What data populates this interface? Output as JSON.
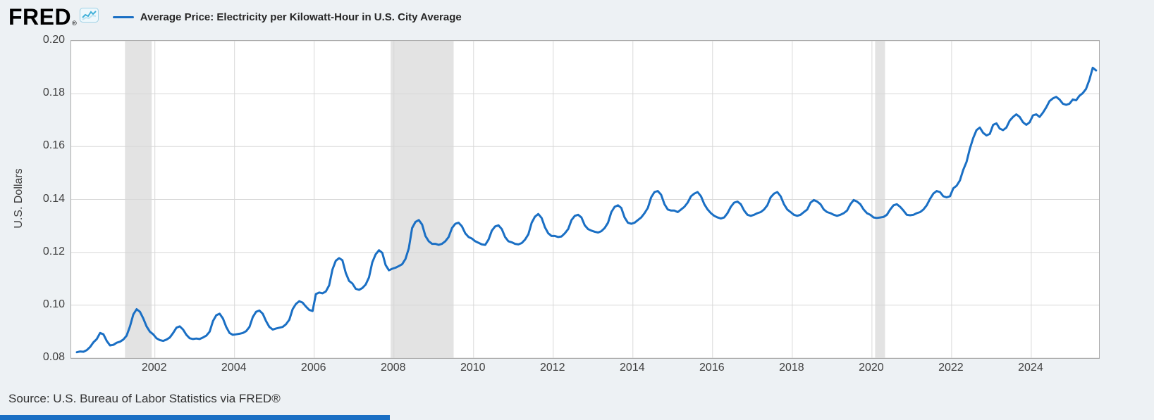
{
  "header": {
    "logo_text": "FRED",
    "registered_mark": "®"
  },
  "legend": {
    "label": "Average Price: Electricity per Kilowatt-Hour in U.S. City Average"
  },
  "footer": {
    "source": "Source: U.S. Bureau of Labor Statistics via FRED®"
  },
  "chart_data": {
    "type": "line",
    "title": "Average Price: Electricity per Kilowatt-Hour in U.S. City Average",
    "xlabel": "",
    "ylabel": "U.S. Dollars",
    "xlim": [
      1999.9,
      2025.7
    ],
    "ylim": [
      0.08,
      0.2
    ],
    "x_ticks": [
      2002,
      2004,
      2006,
      2008,
      2010,
      2012,
      2014,
      2016,
      2018,
      2020,
      2022,
      2024
    ],
    "y_ticks": [
      0.08,
      0.1,
      0.12,
      0.14,
      0.16,
      0.18,
      0.2
    ],
    "grid": true,
    "legend_position": "top-left",
    "recessions": [
      [
        2001.25,
        2001.92
      ],
      [
        2007.92,
        2009.5
      ],
      [
        2020.08,
        2020.33
      ]
    ],
    "colors": {
      "line": "#1a6fc4",
      "grid": "#d8d8d8",
      "recession": "#e3e3e3",
      "plot_border": "#aaaaaa",
      "text": "#404040"
    },
    "series": [
      {
        "name": "Average Price: Electricity per Kilowatt-Hour in U.S. City Average",
        "frequency": "monthly",
        "start_year": 2000,
        "values": [
          0.0822,
          0.0825,
          0.0824,
          0.083,
          0.0842,
          0.086,
          0.0872,
          0.0895,
          0.089,
          0.0865,
          0.0848,
          0.085,
          0.0858,
          0.0862,
          0.087,
          0.0885,
          0.092,
          0.0965,
          0.0985,
          0.0975,
          0.095,
          0.092,
          0.09,
          0.089,
          0.0875,
          0.0868,
          0.0865,
          0.087,
          0.0878,
          0.0895,
          0.0915,
          0.092,
          0.0908,
          0.0888,
          0.0875,
          0.0872,
          0.0874,
          0.0872,
          0.0878,
          0.0885,
          0.09,
          0.094,
          0.0962,
          0.0968,
          0.095,
          0.0918,
          0.0895,
          0.0888,
          0.089,
          0.0892,
          0.0895,
          0.0902,
          0.0918,
          0.0955,
          0.0975,
          0.098,
          0.0968,
          0.094,
          0.0918,
          0.0908,
          0.0912,
          0.0915,
          0.0918,
          0.0928,
          0.0945,
          0.0985,
          0.1005,
          0.1015,
          0.101,
          0.0995,
          0.0982,
          0.0978,
          0.1042,
          0.1048,
          0.1045,
          0.1052,
          0.1075,
          0.1135,
          0.1168,
          0.1178,
          0.117,
          0.1122,
          0.1092,
          0.1082,
          0.1062,
          0.1058,
          0.1065,
          0.1078,
          0.1105,
          0.1162,
          0.1192,
          0.1208,
          0.1198,
          0.1152,
          0.1132,
          0.1138,
          0.1142,
          0.1148,
          0.1155,
          0.1175,
          0.1215,
          0.1292,
          0.1315,
          0.1322,
          0.1305,
          0.1262,
          0.1242,
          0.1232,
          0.1232,
          0.1228,
          0.1232,
          0.1242,
          0.1258,
          0.1292,
          0.1308,
          0.1312,
          0.1298,
          0.1272,
          0.1258,
          0.1252,
          0.1242,
          0.1236,
          0.123,
          0.1228,
          0.1248,
          0.1282,
          0.1298,
          0.1302,
          0.1288,
          0.1258,
          0.1242,
          0.1238,
          0.1232,
          0.123,
          0.1235,
          0.1248,
          0.1268,
          0.1312,
          0.1335,
          0.1345,
          0.133,
          0.1295,
          0.1272,
          0.1262,
          0.1262,
          0.1258,
          0.126,
          0.1272,
          0.1288,
          0.1322,
          0.1338,
          0.1342,
          0.1332,
          0.1302,
          0.1288,
          0.1282,
          0.1278,
          0.1275,
          0.128,
          0.1292,
          0.1312,
          0.1352,
          0.1372,
          0.1378,
          0.1368,
          0.1332,
          0.1312,
          0.1308,
          0.1312,
          0.1322,
          0.1332,
          0.1348,
          0.1368,
          0.1408,
          0.1428,
          0.1432,
          0.1418,
          0.1382,
          0.1362,
          0.1358,
          0.1358,
          0.1352,
          0.1362,
          0.1372,
          0.1388,
          0.1412,
          0.1422,
          0.1428,
          0.1412,
          0.1382,
          0.1362,
          0.1348,
          0.1338,
          0.1332,
          0.1328,
          0.1332,
          0.1348,
          0.1372,
          0.1388,
          0.1392,
          0.1382,
          0.1358,
          0.1342,
          0.1338,
          0.1342,
          0.1348,
          0.1352,
          0.1362,
          0.1378,
          0.1408,
          0.1422,
          0.1428,
          0.1412,
          0.1382,
          0.1362,
          0.1352,
          0.1342,
          0.1338,
          0.1342,
          0.1352,
          0.1362,
          0.1388,
          0.1398,
          0.1392,
          0.1382,
          0.1362,
          0.1352,
          0.1348,
          0.1342,
          0.1338,
          0.1342,
          0.1348,
          0.1358,
          0.1382,
          0.1398,
          0.1392,
          0.1382,
          0.1362,
          0.1348,
          0.1342,
          0.1332,
          0.133,
          0.1332,
          0.1334,
          0.1342,
          0.1362,
          0.1378,
          0.1382,
          0.1372,
          0.1358,
          0.1342,
          0.134,
          0.1342,
          0.1348,
          0.1352,
          0.1362,
          0.1378,
          0.1402,
          0.1422,
          0.1432,
          0.1428,
          0.1412,
          0.1408,
          0.1412,
          0.1442,
          0.1452,
          0.1472,
          0.1512,
          0.1542,
          0.1592,
          0.1632,
          0.1662,
          0.1672,
          0.1652,
          0.1642,
          0.1648,
          0.1682,
          0.1688,
          0.1668,
          0.1662,
          0.1672,
          0.1698,
          0.1712,
          0.1722,
          0.1712,
          0.1692,
          0.1682,
          0.1692,
          0.1718,
          0.1722,
          0.1712,
          0.1728,
          0.1748,
          0.1772,
          0.1782,
          0.1788,
          0.1778,
          0.1762,
          0.1758,
          0.1762,
          0.1778,
          0.1775,
          0.1792,
          0.1802,
          0.1818,
          0.1852,
          0.1898,
          0.1888
        ]
      }
    ]
  }
}
